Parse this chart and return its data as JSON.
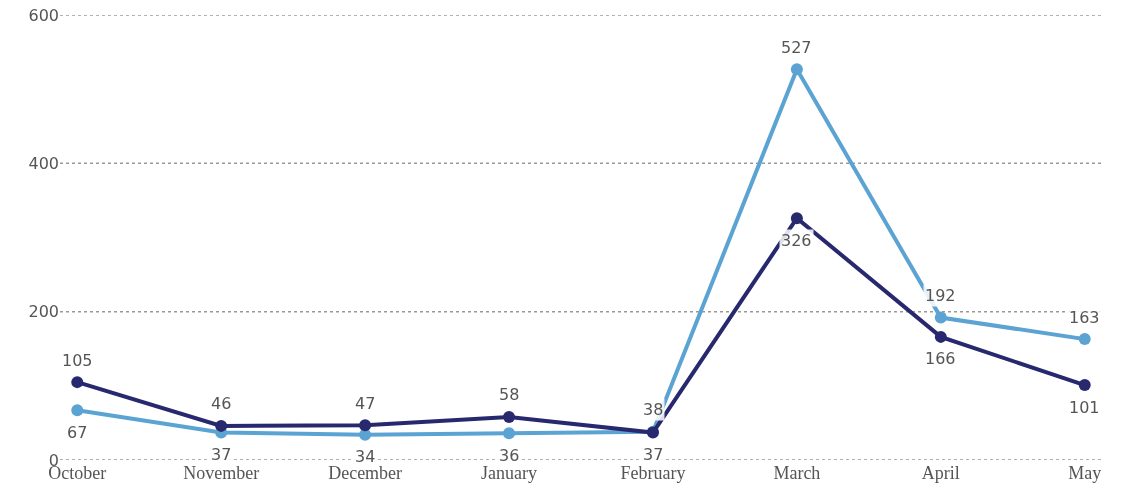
{
  "chart_data": {
    "type": "line",
    "categories": [
      "October",
      "November",
      "December",
      "January",
      "February",
      "March",
      "April",
      "May"
    ],
    "series": [
      {
        "color": "#5ba3d2",
        "values": [
          67,
          37,
          34,
          36,
          38,
          527,
          192,
          163
        ]
      },
      {
        "color": "#28286e",
        "values": [
          105,
          46,
          47,
          58,
          37,
          326,
          166,
          101
        ]
      }
    ],
    "ylim": [
      0,
      600
    ],
    "yticks": [
      0,
      200,
      400,
      600
    ],
    "grid": "y",
    "marker": "circle",
    "line_style": "solid",
    "data_labels": true
  }
}
